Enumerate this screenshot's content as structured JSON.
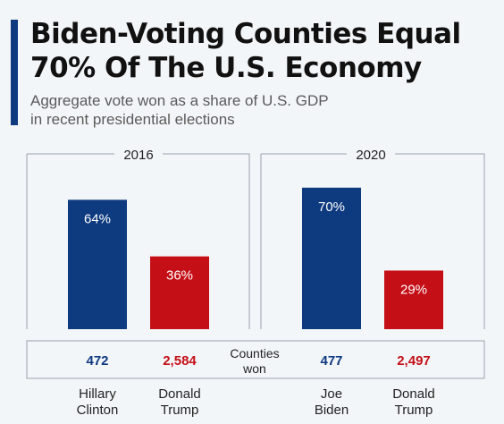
{
  "header": {
    "title_line1": "Biden-Voting Counties Equal",
    "title_line2": "70% Of The U.S. Economy",
    "subtitle_line1": "Aggregate vote won as a share of U.S. GDP",
    "subtitle_line2": "in recent presidential elections"
  },
  "colors": {
    "democrat": "#0e3a80",
    "republican": "#c40f17",
    "background": "#f3f6f9",
    "frame": "#9aa3ad"
  },
  "chart_data": {
    "type": "bar",
    "title": "Biden-Voting Counties Equal 70% Of The U.S. Economy",
    "subtitle": "Aggregate vote won as a share of U.S. GDP in recent presidential elections",
    "unit": "%",
    "ylim": [
      0,
      100
    ],
    "grid": false,
    "legend": "none",
    "row_label_line1": "Counties",
    "row_label_line2": "won",
    "groups": [
      {
        "year": "2016",
        "bars": [
          {
            "candidate_line1": "Hillary",
            "candidate_line2": "Clinton",
            "party": "democrat",
            "gdp_share": 64,
            "gdp_label": "64%",
            "counties": 472,
            "counties_label": "472"
          },
          {
            "candidate_line1": "Donald",
            "candidate_line2": "Trump",
            "party": "republican",
            "gdp_share": 36,
            "gdp_label": "36%",
            "counties": 2584,
            "counties_label": "2,584"
          }
        ]
      },
      {
        "year": "2020",
        "bars": [
          {
            "candidate_line1": "Joe",
            "candidate_line2": "Biden",
            "party": "democrat",
            "gdp_share": 70,
            "gdp_label": "70%",
            "counties": 477,
            "counties_label": "477"
          },
          {
            "candidate_line1": "Donald",
            "candidate_line2": "Trump",
            "party": "republican",
            "gdp_share": 29,
            "gdp_label": "29%",
            "counties": 2497,
            "counties_label": "2,497"
          }
        ]
      }
    ]
  }
}
